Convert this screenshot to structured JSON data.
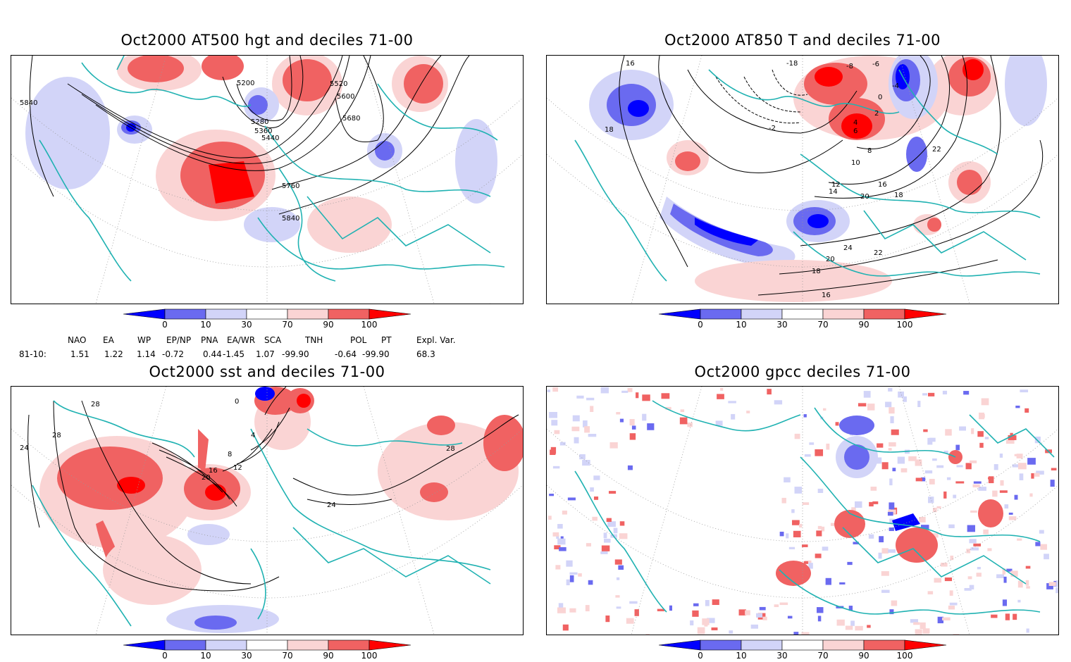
{
  "panels": [
    {
      "title": "Oct2000 AT500 hgt and deciles 71-00",
      "contour_labels": [
        "5840",
        "5200",
        "5280",
        "5360",
        "5440",
        "5520",
        "5600",
        "5680",
        "5760",
        "5840"
      ]
    },
    {
      "title": "Oct2000 AT850 T and deciles 71-00",
      "contour_labels": [
        "16",
        "18",
        "-18",
        "-8",
        "-6",
        "-4",
        "-2",
        "0",
        "2",
        "4",
        "6",
        "8",
        "10",
        "12",
        "14",
        "16",
        "18",
        "20",
        "22",
        "24",
        "22",
        "20",
        "18",
        "16"
      ]
    },
    {
      "title": "Oct2000 sst and deciles 71-00",
      "contour_labels": [
        "28",
        "24",
        "28",
        "0",
        "4",
        "8",
        "12",
        "16",
        "20",
        "24",
        "28"
      ]
    },
    {
      "title": "Oct2000 gpcc deciles 71-00",
      "contour_labels": []
    }
  ],
  "colorbar": {
    "ticks": [
      "0",
      "10",
      "30",
      "70",
      "90",
      "100"
    ],
    "colors": [
      "#0000ff",
      "#6a6af0",
      "#d2d4f8",
      "#ffffff",
      "#fad4d4",
      "#f06262",
      "#ff0000"
    ]
  },
  "indices": {
    "headers": [
      "NAO",
      "EA",
      "WP",
      "EP/NP",
      "PNA",
      "EA/WR",
      "SCA",
      "TNH",
      "POL",
      "PT",
      "Expl. Var."
    ],
    "row_label": "81-10:",
    "values": [
      "1.51",
      "1.22",
      "1.14",
      "-0.72",
      "0.44",
      "-1.45",
      "1.07",
      "-99.90",
      "-0.64",
      "-99.90",
      "68.3"
    ]
  },
  "colors": {
    "coast": "#20b2b2",
    "grid": "#888888",
    "contour": "#000000"
  }
}
